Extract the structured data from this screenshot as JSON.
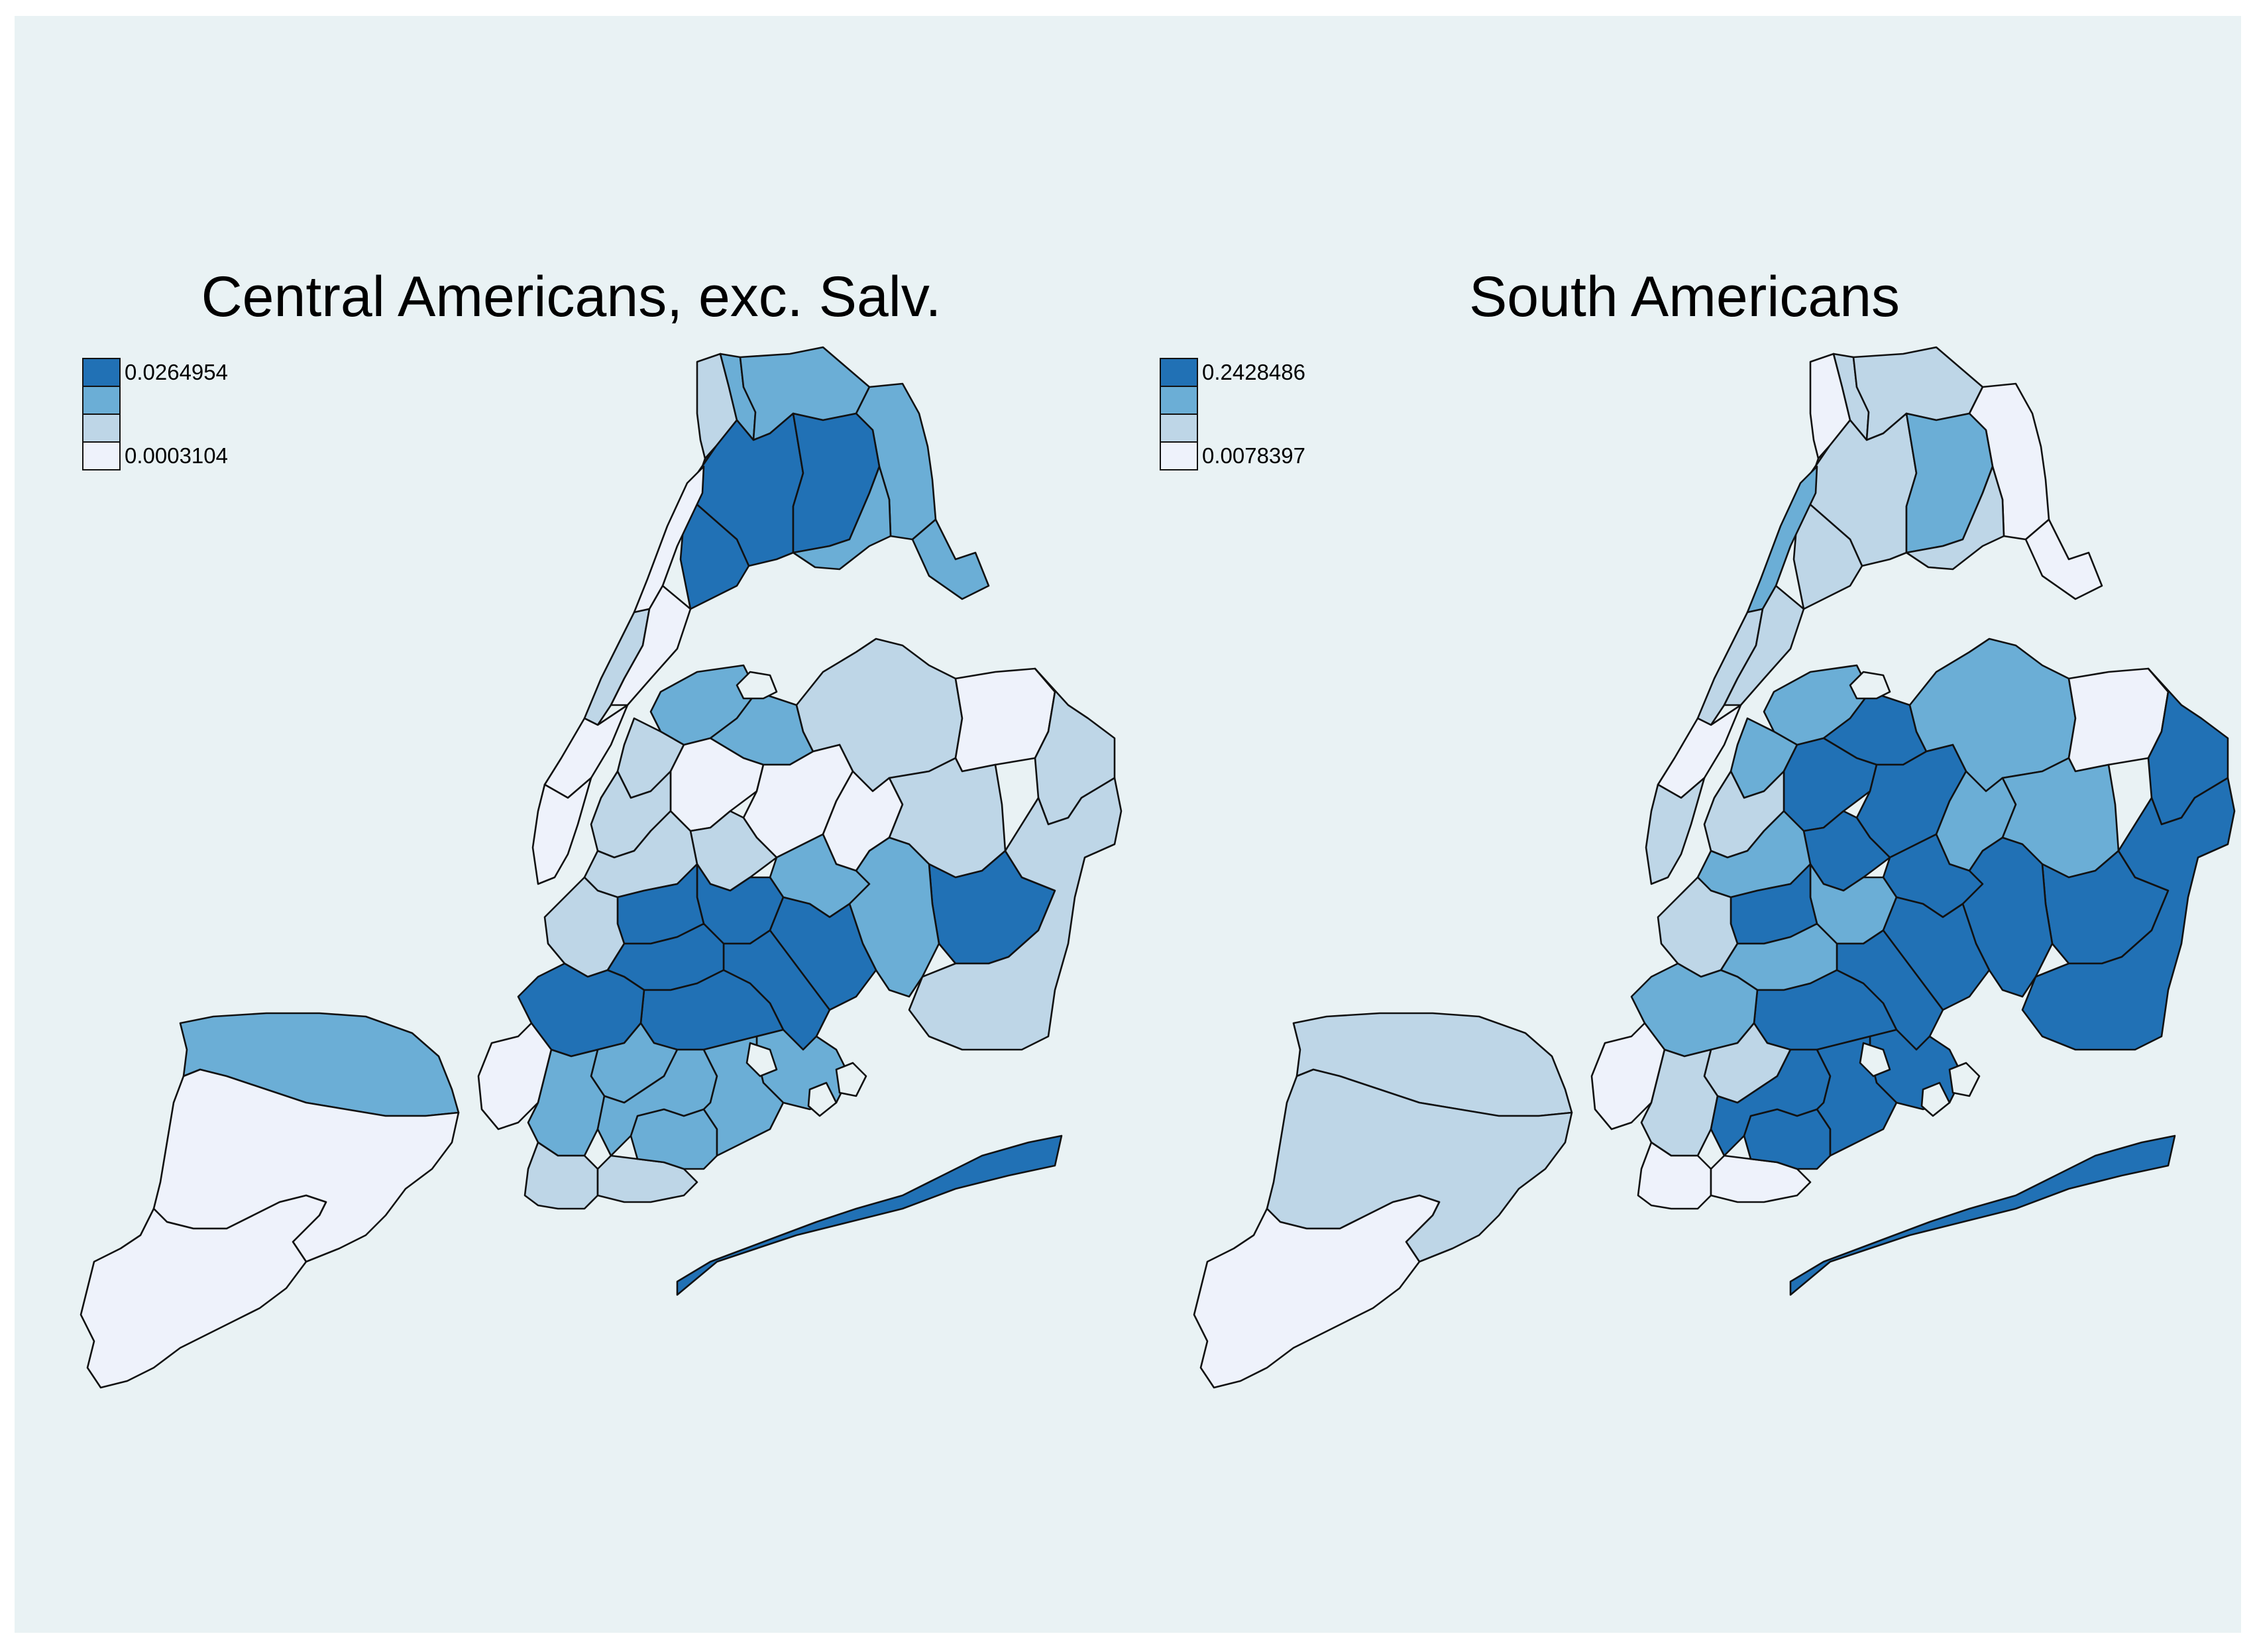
{
  "colors": {
    "background": "#e9f2f4",
    "class_1": "#eef2fb",
    "class_2": "#bed6e7",
    "class_3": "#6baed6",
    "class_4": "#2171b5",
    "outline": "#111111"
  },
  "maps": [
    {
      "title": "Central Americans, exc. Salv.",
      "legend": {
        "max": "0.0264954",
        "min": "0.0003104"
      },
      "region_classes": {
        "bronx_w": 2,
        "bronx_nw": 3,
        "bronx_n": 3,
        "bronx_ne": 3,
        "bronx_c": 4,
        "bronx_e": 4,
        "bronx_s": 4,
        "bronx_se": 3,
        "bronx_pelham": 3,
        "man_north": 1,
        "man_uws": 2,
        "man_ues": 1,
        "man_mid": 1,
        "man_lower": 1,
        "q_astoria": 3,
        "q_lic": 2,
        "q_jh": 3,
        "q_flush": 2,
        "q_bayside": 1,
        "q_ne": 2,
        "q_woodside": 1,
        "q_elm": 1,
        "q_rego": 1,
        "q_fresh": 2,
        "q_queensvil": 4,
        "q_se": 2,
        "q_ridgewood": 2,
        "q_woodhaven": 3,
        "q_jamaica": 3,
        "q_rockaway": 4,
        "bk_gp": 2,
        "bk_wburg": 2,
        "bk_bushwick": 4,
        "bk_bedstuy": 4,
        "bk_cyp": 4,
        "bk_enyc": 4,
        "bk_parkslope": 2,
        "bk_crown": 4,
        "bk_flatbush": 4,
        "bk_sunset": 4,
        "bk_boro": 3,
        "bk_canarsie": 3,
        "bk_bayridge": 1,
        "bk_benson": 3,
        "bk_gravesend": 2,
        "bk_coney": 2,
        "bk_sheeps": 3,
        "bk_midwood": 3,
        "bk_flatlands": 3,
        "si_north": 3,
        "si_mid": 1,
        "si_south": 1
      }
    },
    {
      "title": "South Americans",
      "legend": {
        "max": "0.2428486",
        "min": "0.0078397"
      },
      "region_classes": {
        "bronx_w": 1,
        "bronx_nw": 2,
        "bronx_n": 2,
        "bronx_ne": 1,
        "bronx_c": 2,
        "bronx_e": 3,
        "bronx_s": 2,
        "bronx_se": 2,
        "bronx_pelham": 1,
        "man_north": 3,
        "man_uws": 2,
        "man_ues": 2,
        "man_mid": 1,
        "man_lower": 2,
        "q_astoria": 3,
        "q_lic": 3,
        "q_jh": 4,
        "q_flush": 3,
        "q_bayside": 1,
        "q_ne": 4,
        "q_woodside": 4,
        "q_elm": 4,
        "q_rego": 3,
        "q_fresh": 3,
        "q_queensvil": 4,
        "q_se": 4,
        "q_ridgewood": 4,
        "q_woodhaven": 4,
        "q_jamaica": 4,
        "q_rockaway": 4,
        "bk_gp": 2,
        "bk_wburg": 3,
        "bk_bushwick": 3,
        "bk_bedstuy": 4,
        "bk_cyp": 4,
        "bk_enyc": 4,
        "bk_parkslope": 2,
        "bk_crown": 3,
        "bk_flatbush": 4,
        "bk_sunset": 3,
        "bk_boro": 2,
        "bk_canarsie": 4,
        "bk_bayridge": 1,
        "bk_benson": 2,
        "bk_gravesend": 1,
        "bk_coney": 1,
        "bk_sheeps": 4,
        "bk_midwood": 4,
        "bk_flatlands": 4,
        "si_north": 2,
        "si_mid": 2,
        "si_south": 1
      }
    }
  ]
}
